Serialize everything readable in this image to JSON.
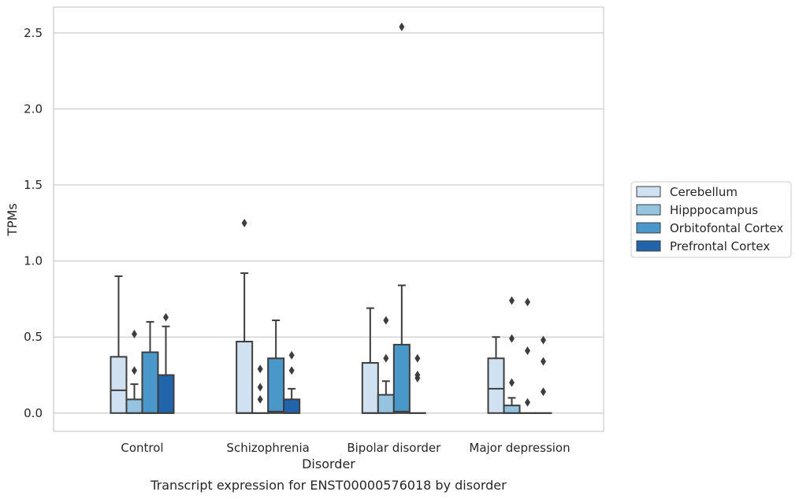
{
  "chart_data": {
    "type": "box",
    "title": "",
    "caption": "Transcript expression for ENST00000576018 by disorder",
    "xlabel": "Disorder",
    "ylabel": "TPMs",
    "categories": [
      "Control",
      "Schizophrenia",
      "Bipolar disorder",
      "Major depression"
    ],
    "ylim": [
      -0.12,
      2.67
    ],
    "yticks": [
      0.0,
      0.5,
      1.0,
      1.5,
      2.0,
      2.5
    ],
    "ytick_labels": [
      "0.0",
      "0.5",
      "1.0",
      "1.5",
      "2.0",
      "2.5"
    ],
    "grid": "horizontal",
    "legend_position": "outside-right",
    "series": [
      {
        "name": "Cerebellum",
        "color": "#d0e1f2",
        "boxes": [
          {
            "q1": 0.0,
            "median": 0.15,
            "q3": 0.37,
            "whisker_low": 0.0,
            "whisker_high": 0.9,
            "outliers": []
          },
          {
            "q1": 0.0,
            "median": 0.0,
            "q3": 0.47,
            "whisker_low": 0.0,
            "whisker_high": 0.92,
            "outliers": [
              1.25
            ]
          },
          {
            "q1": 0.0,
            "median": 0.0,
            "q3": 0.33,
            "whisker_low": 0.0,
            "whisker_high": 0.69,
            "outliers": []
          },
          {
            "q1": 0.0,
            "median": 0.16,
            "q3": 0.36,
            "whisker_low": 0.0,
            "whisker_high": 0.5,
            "outliers": []
          }
        ]
      },
      {
        "name": "Hipppocampus",
        "color": "#94c4df",
        "boxes": [
          {
            "q1": 0.0,
            "median": 0.0,
            "q3": 0.09,
            "whisker_low": 0.0,
            "whisker_high": 0.19,
            "outliers": [
              0.28,
              0.52
            ]
          },
          {
            "q1": 0.0,
            "median": 0.0,
            "q3": 0.0,
            "whisker_low": 0.0,
            "whisker_high": 0.0,
            "outliers": [
              0.09,
              0.17,
              0.29
            ]
          },
          {
            "q1": 0.0,
            "median": 0.0,
            "q3": 0.12,
            "whisker_low": 0.0,
            "whisker_high": 0.21,
            "outliers": [
              0.36,
              0.61
            ]
          },
          {
            "q1": 0.0,
            "median": 0.0,
            "q3": 0.05,
            "whisker_low": 0.0,
            "whisker_high": 0.1,
            "outliers": [
              0.2,
              0.49,
              0.74
            ]
          }
        ]
      },
      {
        "name": "Orbitofontal Cortex",
        "color": "#4a98c9",
        "boxes": [
          {
            "q1": 0.0,
            "median": 0.0,
            "q3": 0.4,
            "whisker_low": 0.0,
            "whisker_high": 0.6,
            "outliers": []
          },
          {
            "q1": 0.0,
            "median": 0.01,
            "q3": 0.36,
            "whisker_low": 0.0,
            "whisker_high": 0.61,
            "outliers": []
          },
          {
            "q1": 0.0,
            "median": 0.01,
            "q3": 0.45,
            "whisker_low": 0.0,
            "whisker_high": 0.84,
            "outliers": [
              2.54
            ]
          },
          {
            "q1": 0.0,
            "median": 0.0,
            "q3": 0.0,
            "whisker_low": 0.0,
            "whisker_high": 0.0,
            "outliers": [
              0.07,
              0.41,
              0.73
            ]
          }
        ]
      },
      {
        "name": "Prefrontal Cortex",
        "color": "#2164ab",
        "boxes": [
          {
            "q1": 0.0,
            "median": 0.0,
            "q3": 0.25,
            "whisker_low": 0.0,
            "whisker_high": 0.57,
            "outliers": [
              0.63
            ]
          },
          {
            "q1": 0.0,
            "median": 0.0,
            "q3": 0.09,
            "whisker_low": 0.0,
            "whisker_high": 0.16,
            "outliers": [
              0.28,
              0.38
            ]
          },
          {
            "q1": 0.0,
            "median": 0.0,
            "q3": 0.0,
            "whisker_low": 0.0,
            "whisker_high": 0.0,
            "outliers": [
              0.23,
              0.25,
              0.36
            ]
          },
          {
            "q1": 0.0,
            "median": 0.0,
            "q3": 0.0,
            "whisker_low": 0.0,
            "whisker_high": 0.0,
            "outliers": [
              0.14,
              0.34,
              0.48
            ]
          }
        ]
      }
    ]
  }
}
